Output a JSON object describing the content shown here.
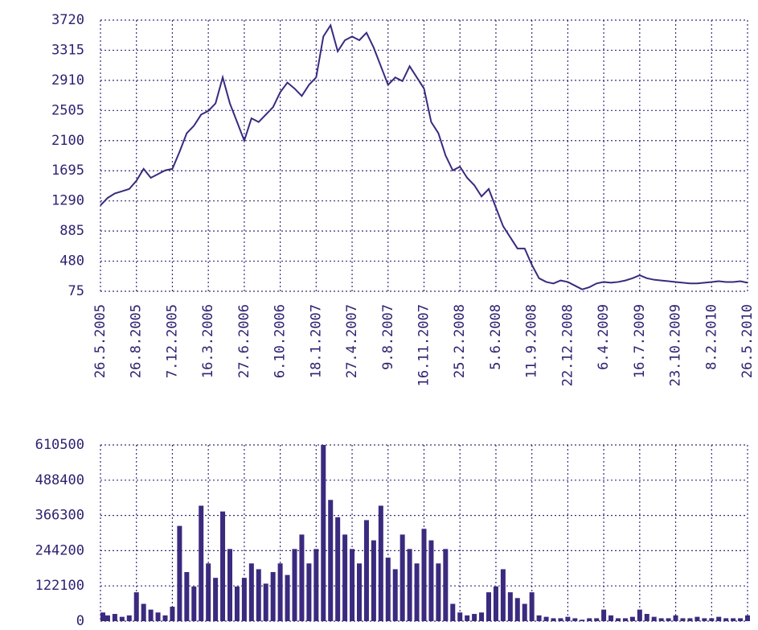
{
  "chart_data": [
    {
      "type": "line",
      "color": "#3b2a7e",
      "grid": true,
      "categories": [
        "26.5.2005",
        null,
        null,
        null,
        null,
        "26.8.2005",
        null,
        null,
        null,
        null,
        "7.12.2005",
        null,
        null,
        null,
        null,
        "16.3.2006",
        null,
        null,
        null,
        null,
        "27.6.2006",
        null,
        null,
        null,
        null,
        "6.10.2006",
        null,
        null,
        null,
        null,
        "18.1.2007",
        null,
        null,
        null,
        null,
        "27.4.2007",
        null,
        null,
        null,
        null,
        "9.8.2007",
        null,
        null,
        null,
        null,
        "16.11.2007",
        null,
        null,
        null,
        null,
        "25.2.2008",
        null,
        null,
        null,
        null,
        "5.6.2008",
        null,
        null,
        null,
        null,
        "11.9.2008",
        null,
        null,
        null,
        null,
        "22.12.2008",
        null,
        null,
        null,
        null,
        "6.4.2009",
        null,
        null,
        null,
        null,
        "16.7.2009",
        null,
        null,
        null,
        null,
        "23.10.2009",
        null,
        null,
        null,
        null,
        "8.2.2010",
        null,
        null,
        null,
        null,
        "26.5.2010"
      ],
      "values": [
        1230,
        1330,
        1390,
        1420,
        1450,
        1560,
        1720,
        1600,
        1650,
        1700,
        1720,
        1950,
        2200,
        2300,
        2450,
        2500,
        2600,
        2950,
        2600,
        2350,
        2100,
        2400,
        2350,
        2450,
        2550,
        2750,
        2880,
        2800,
        2700,
        2850,
        2950,
        3500,
        3650,
        3300,
        3450,
        3500,
        3450,
        3550,
        3350,
        3100,
        2850,
        2950,
        2900,
        3100,
        2950,
        2800,
        2350,
        2200,
        1900,
        1700,
        1750,
        1600,
        1500,
        1350,
        1450,
        1200,
        950,
        800,
        650,
        650,
        430,
        250,
        200,
        180,
        220,
        200,
        150,
        100,
        130,
        180,
        200,
        190,
        200,
        220,
        250,
        290,
        250,
        230,
        220,
        210,
        200,
        190,
        180,
        180,
        190,
        200,
        210,
        200,
        200,
        210,
        190
      ],
      "ylim": [
        75,
        3720
      ],
      "yticks": [
        75,
        480,
        885,
        1290,
        1695,
        2100,
        2505,
        2910,
        3315,
        3720
      ]
    },
    {
      "type": "bar",
      "color": "#3b2a7e",
      "grid": true,
      "values": [
        30000,
        20000,
        25000,
        15000,
        20000,
        100000,
        60000,
        40000,
        30000,
        20000,
        50000,
        330000,
        170000,
        120000,
        400000,
        200000,
        150000,
        380000,
        250000,
        120000,
        150000,
        200000,
        180000,
        130000,
        170000,
        200000,
        160000,
        250000,
        300000,
        200000,
        250000,
        610500,
        420000,
        360000,
        300000,
        250000,
        200000,
        350000,
        280000,
        400000,
        220000,
        180000,
        300000,
        250000,
        200000,
        320000,
        280000,
        200000,
        250000,
        60000,
        30000,
        20000,
        25000,
        30000,
        100000,
        120000,
        180000,
        100000,
        80000,
        60000,
        100000,
        20000,
        15000,
        10000,
        10000,
        15000,
        10000,
        5000,
        10000,
        10000,
        40000,
        20000,
        10000,
        10000,
        15000,
        40000,
        25000,
        15000,
        10000,
        10000,
        20000,
        10000,
        10000,
        15000,
        10000,
        10000,
        15000,
        10000,
        10000,
        10000,
        20000
      ],
      "ylim": [
        0,
        610500
      ],
      "yticks": [
        0,
        122100,
        244200,
        366300,
        488400,
        610500
      ]
    }
  ]
}
